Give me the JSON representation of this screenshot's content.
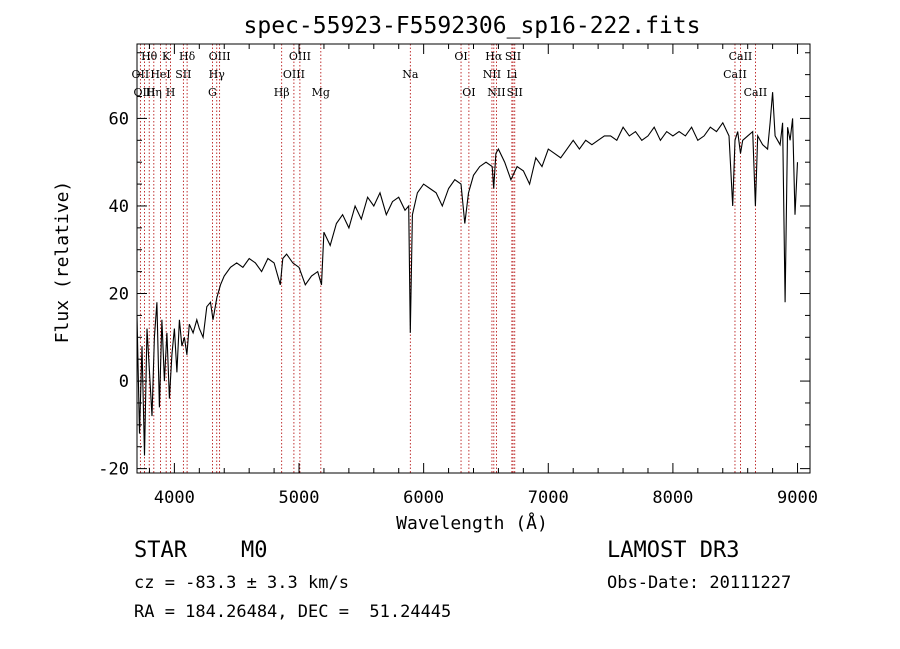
{
  "chart_data": {
    "type": "line",
    "title": "spec-55923-F5592306_sp16-222.fits",
    "xlabel": "Wavelength (Å)",
    "ylabel": "Flux (relative)",
    "xlim": [
      3700,
      9100
    ],
    "ylim": [
      -21,
      77
    ],
    "xticks": [
      4000,
      5000,
      6000,
      7000,
      8000,
      9000
    ],
    "yticks": [
      -20,
      0,
      20,
      40,
      60
    ],
    "line_color": "#000000",
    "marker_color": "#b00000",
    "spectrum": {
      "x": [
        3700,
        3720,
        3740,
        3760,
        3780,
        3800,
        3820,
        3840,
        3860,
        3880,
        3900,
        3920,
        3940,
        3960,
        3980,
        4000,
        4020,
        4040,
        4060,
        4080,
        4100,
        4120,
        4150,
        4180,
        4200,
        4230,
        4260,
        4290,
        4310,
        4340,
        4370,
        4400,
        4450,
        4500,
        4550,
        4600,
        4650,
        4700,
        4750,
        4800,
        4850,
        4870,
        4900,
        4950,
        5000,
        5050,
        5100,
        5150,
        5180,
        5200,
        5250,
        5300,
        5350,
        5400,
        5450,
        5500,
        5550,
        5600,
        5650,
        5700,
        5750,
        5800,
        5850,
        5880,
        5893,
        5910,
        5950,
        6000,
        6050,
        6100,
        6150,
        6200,
        6250,
        6300,
        6330,
        6360,
        6400,
        6450,
        6500,
        6550,
        6562,
        6580,
        6600,
        6650,
        6700,
        6750,
        6800,
        6850,
        6900,
        6950,
        7000,
        7050,
        7100,
        7150,
        7200,
        7250,
        7300,
        7350,
        7400,
        7450,
        7500,
        7550,
        7600,
        7650,
        7700,
        7750,
        7800,
        7850,
        7900,
        7950,
        8000,
        8050,
        8100,
        8150,
        8200,
        8250,
        8300,
        8350,
        8400,
        8450,
        8480,
        8498,
        8520,
        8542,
        8560,
        8600,
        8640,
        8662,
        8680,
        8720,
        8760,
        8780,
        8800,
        8820,
        8840,
        8860,
        8880,
        8900,
        8920,
        8940,
        8960,
        8980,
        9000
      ],
      "y": [
        15,
        -12,
        8,
        -17,
        12,
        2,
        -8,
        10,
        18,
        -6,
        14,
        0,
        11,
        -4,
        6,
        12,
        2,
        14,
        8,
        10,
        6,
        13,
        11,
        14,
        12,
        10,
        17,
        18,
        14,
        19,
        22,
        24,
        26,
        27,
        26,
        28,
        27,
        25,
        28,
        27,
        22,
        28,
        29,
        27,
        26,
        22,
        24,
        25,
        22,
        34,
        31,
        36,
        38,
        35,
        40,
        37,
        42,
        40,
        43,
        38,
        41,
        42,
        39,
        40,
        11,
        38,
        43,
        45,
        44,
        43,
        40,
        44,
        46,
        45,
        36,
        43,
        47,
        49,
        50,
        49,
        44,
        52,
        53,
        50,
        46,
        49,
        48,
        45,
        51,
        49,
        53,
        52,
        51,
        53,
        55,
        53,
        55,
        54,
        55,
        56,
        56,
        55,
        58,
        56,
        57,
        55,
        56,
        58,
        55,
        57,
        56,
        57,
        56,
        58,
        55,
        56,
        58,
        57,
        59,
        56,
        40,
        55,
        57,
        52,
        55,
        56,
        57,
        40,
        56,
        54,
        53,
        59,
        66,
        56,
        55,
        54,
        59,
        18,
        58,
        55,
        60,
        38,
        50
      ]
    },
    "line_markers": [
      {
        "name": "Hθ",
        "wavelength": 3798,
        "row": 1
      },
      {
        "name": "OII",
        "wavelength": 3727,
        "row": 2
      },
      {
        "name": "OIII",
        "wavelength": 3760,
        "row": 3
      },
      {
        "name": "K",
        "wavelength": 3934,
        "row": 1
      },
      {
        "name": "HeI",
        "wavelength": 3889,
        "row": 2
      },
      {
        "name": "Hη",
        "wavelength": 3835,
        "row": 3
      },
      {
        "name": "Hδ",
        "wavelength": 4102,
        "row": 1
      },
      {
        "name": "SII",
        "wavelength": 4072,
        "row": 2
      },
      {
        "name": "H",
        "wavelength": 3969,
        "row": 3
      },
      {
        "name": "OIII",
        "wavelength": 4363,
        "row": 1
      },
      {
        "name": "Hγ",
        "wavelength": 4340,
        "row": 2
      },
      {
        "name": "G",
        "wavelength": 4305,
        "row": 3
      },
      {
        "name": "OIII",
        "wavelength": 5007,
        "row": 1
      },
      {
        "name": "OIII",
        "wavelength": 4959,
        "row": 2
      },
      {
        "name": "Hβ",
        "wavelength": 4861,
        "row": 3
      },
      {
        "name": "Mg",
        "wavelength": 5175,
        "row": 3
      },
      {
        "name": "Na",
        "wavelength": 5893,
        "row": 2
      },
      {
        "name": "OI",
        "wavelength": 6300,
        "row": 1
      },
      {
        "name": "OI",
        "wavelength": 6363,
        "row": 3
      },
      {
        "name": "Hα",
        "wavelength": 6563,
        "row": 1
      },
      {
        "name": "NII",
        "wavelength": 6548,
        "row": 2
      },
      {
        "name": "NII",
        "wavelength": 6584,
        "row": 3
      },
      {
        "name": "SII",
        "wavelength": 6717,
        "row": 1
      },
      {
        "name": "Li",
        "wavelength": 6708,
        "row": 2
      },
      {
        "name": "SII",
        "wavelength": 6731,
        "row": 3
      },
      {
        "name": "CaII",
        "wavelength": 8542,
        "row": 1
      },
      {
        "name": "CaII",
        "wavelength": 8498,
        "row": 2
      },
      {
        "name": "CaII",
        "wavelength": 8662,
        "row": 3
      }
    ]
  },
  "info": {
    "object_type": "STAR",
    "subclass": "M0",
    "redshift": "cz = -83.3 ± 3.3 km/s",
    "coords": "RA = 184.26484, DEC =  51.24445",
    "survey": "LAMOST DR3",
    "obs_date": "Obs-Date: 20111227"
  }
}
